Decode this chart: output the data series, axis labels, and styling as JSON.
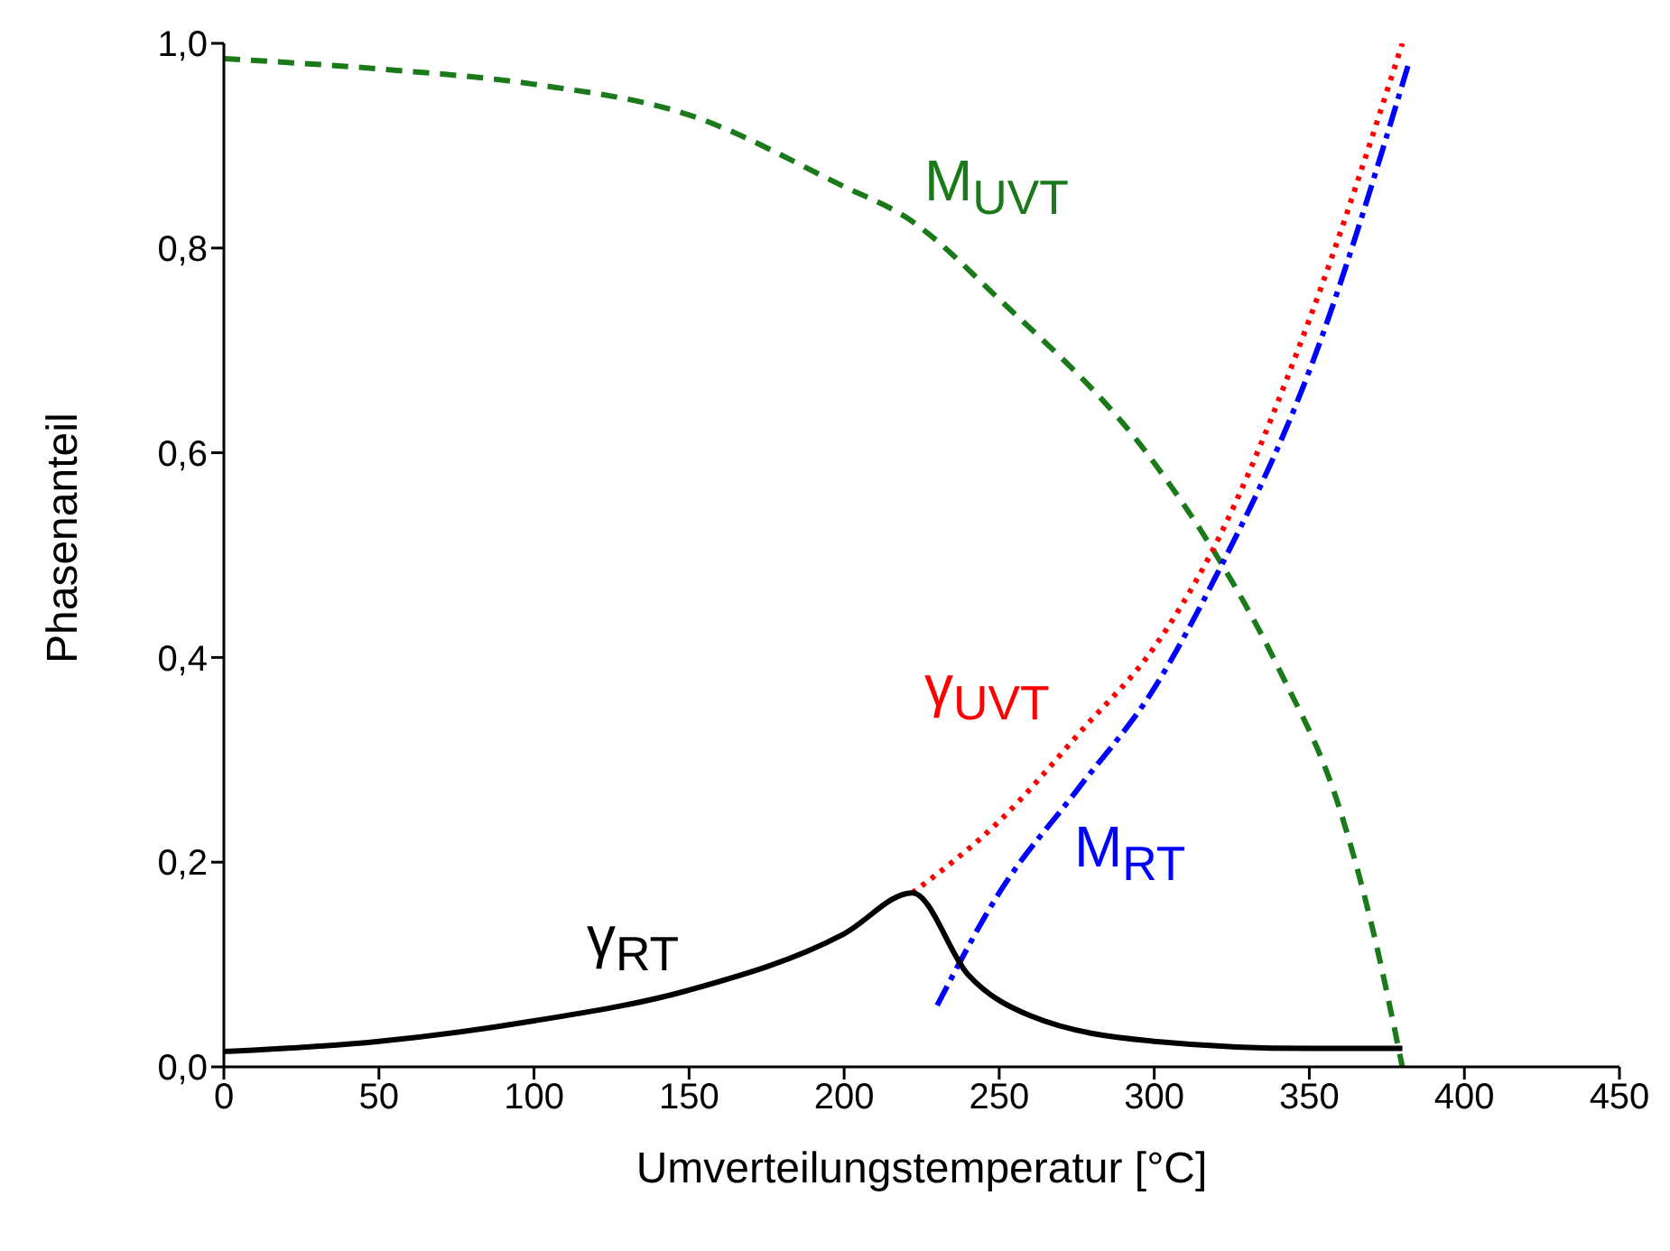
{
  "chart_data": {
    "type": "line",
    "xlabel": "Umverteilungstemperatur [°C]",
    "ylabel": "Phasenanteil",
    "xlim": [
      0,
      450
    ],
    "xticks": [
      0,
      50,
      100,
      150,
      200,
      250,
      300,
      350,
      400,
      450
    ],
    "ylim": [
      0,
      1
    ],
    "yticks": [
      {
        "value": 0,
        "label": "0,0"
      },
      {
        "value": 0.2,
        "label": "0,2"
      },
      {
        "value": 0.4,
        "label": "0,4"
      },
      {
        "value": 0.6,
        "label": "0,6"
      },
      {
        "value": 0.8,
        "label": "0,8"
      },
      {
        "value": 1,
        "label": "1,0"
      }
    ],
    "grid": false,
    "legend": false,
    "marker": "none",
    "series": [
      {
        "name": "M$_{UVT}$",
        "color": "#1a7a1a",
        "line_style": "dashed",
        "x": [
          0,
          50,
          100,
          150,
          200,
          220,
          250,
          300,
          320,
          340,
          360,
          370,
          380
        ],
        "values": [
          0.985,
          0.975,
          0.96,
          0.93,
          0.86,
          0.83,
          0.75,
          0.59,
          0.5,
          0.39,
          0.25,
          0.14,
          0
        ]
      },
      {
        "name": "γ$_{UVT}$",
        "color": "#ff0000",
        "line_style": "dotted",
        "x": [
          222,
          250,
          277,
          300,
          318,
          350,
          380
        ],
        "values": [
          0.17,
          0.24,
          0.33,
          0.41,
          0.5,
          0.73,
          1.0
        ]
      },
      {
        "name": "M$_{RT}$",
        "color": "#0000ff",
        "line_style": "dashdot",
        "x": [
          230,
          250,
          275,
          300,
          320,
          350,
          382
        ],
        "values": [
          0.06,
          0.17,
          0.27,
          0.37,
          0.48,
          0.68,
          0.98
        ]
      },
      {
        "name": "γ$_{RT}$",
        "color": "#000000",
        "line_style": "solid",
        "x": [
          0,
          50,
          100,
          150,
          200,
          222,
          240,
          260,
          300,
          350,
          380
        ],
        "values": [
          0.015,
          0.025,
          0.045,
          0.075,
          0.13,
          0.17,
          0.09,
          0.05,
          0.025,
          0.018,
          0.018
        ]
      }
    ]
  }
}
